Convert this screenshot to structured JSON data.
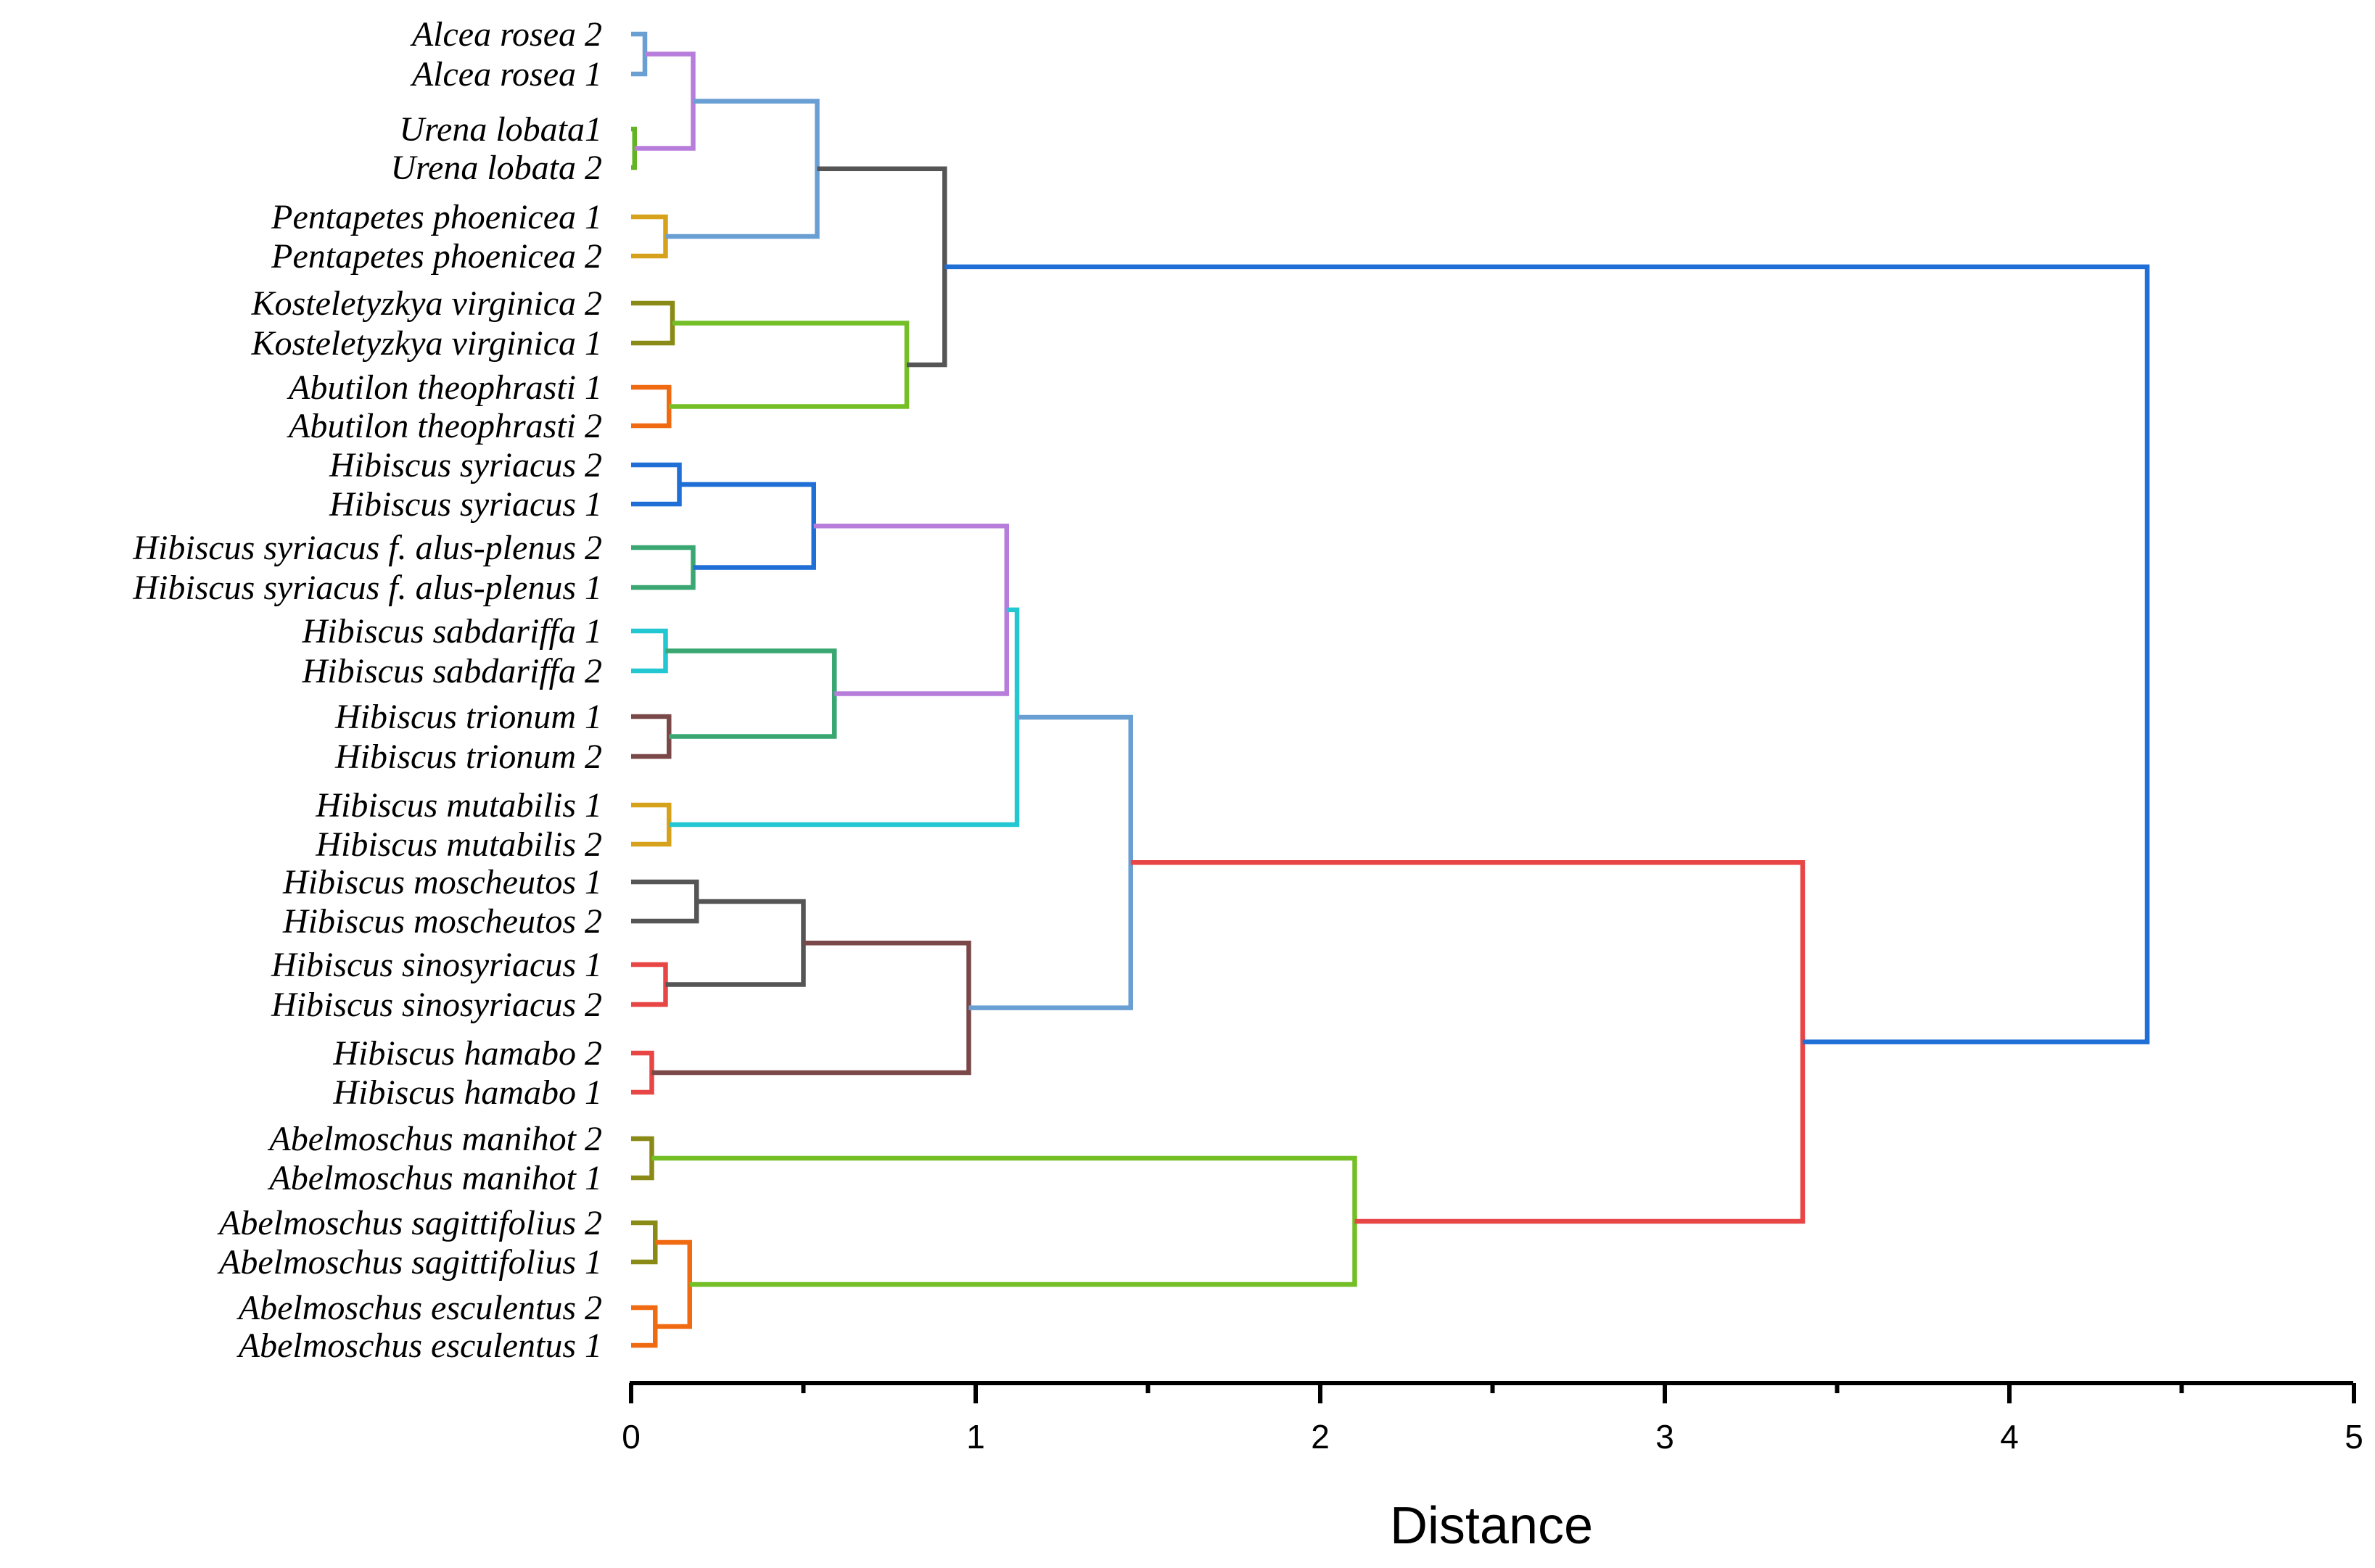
{
  "chart_data": {
    "type": "dendrogram",
    "xlabel": "Distance",
    "xlim": [
      0,
      5
    ],
    "major_ticks": [
      0,
      1,
      2,
      3,
      4,
      5
    ],
    "minor_ticks": [
      0.5,
      1.5,
      2.5,
      3.5,
      4.5
    ],
    "tick_labels": [
      "0",
      "1",
      "2",
      "3",
      "4",
      "5"
    ],
    "leaves": [
      "Alcea rosea 2",
      "Alcea rosea 1",
      "Urena lobata1",
      "Urena lobata 2",
      "Pentapetes phoenicea 1",
      "Pentapetes phoenicea 2",
      "Kosteletyzkya virginica 2",
      "Kosteletyzkya virginica 1",
      "Abutilon theophrasti 1",
      "Abutilon theophrasti 2",
      "Hibiscus syriacus 2",
      "Hibiscus syriacus 1",
      "Hibiscus syriacus f. alus-plenus 2",
      "Hibiscus syriacus f. alus-plenus 1",
      "Hibiscus sabdariffa 1",
      "Hibiscus sabdariffa 2",
      "Hibiscus trionum 1",
      "Hibiscus trionum 2",
      "Hibiscus mutabilis 1",
      "Hibiscus mutabilis 2",
      "Hibiscus moscheutos 1",
      "Hibiscus moscheutos 2",
      "Hibiscus sinosyriacus 1",
      "Hibiscus sinosyriacus 2",
      "Hibiscus hamabo 2",
      "Hibiscus hamabo 1",
      "Abelmoschus manihot 2",
      "Abelmoschus manihot 1",
      "Abelmoschus sagittifolius 2",
      "Abelmoschus sagittifolius 1",
      "Abelmoschus esculentus 2",
      "Abelmoschus esculentus 1"
    ],
    "merges": [
      {
        "id": "m1",
        "a": "L0",
        "b": "L1",
        "height": 0.04,
        "color": "#6a9fd4"
      },
      {
        "id": "m2",
        "a": "L2",
        "b": "L3",
        "height": 0.01,
        "color": "#62b422"
      },
      {
        "id": "m3",
        "a": "m1",
        "b": "m2",
        "height": 0.18,
        "color": "#b77ddb"
      },
      {
        "id": "m4",
        "a": "L4",
        "b": "L5",
        "height": 0.1,
        "color": "#d6a21c"
      },
      {
        "id": "m5",
        "a": "m3",
        "b": "m4",
        "height": 0.54,
        "color": "#6a9fd4"
      },
      {
        "id": "m6",
        "a": "L6",
        "b": "L7",
        "height": 0.12,
        "color": "#8a8a16"
      },
      {
        "id": "m7",
        "a": "L8",
        "b": "L9",
        "height": 0.11,
        "color": "#f06a12"
      },
      {
        "id": "m8",
        "a": "m6",
        "b": "m7",
        "height": 0.8,
        "color": "#74be26"
      },
      {
        "id": "m9",
        "a": "m5",
        "b": "m8",
        "height": 0.91,
        "color": "#555555"
      },
      {
        "id": "m10",
        "a": "L10",
        "b": "L11",
        "height": 0.14,
        "color": "#1f6fd6"
      },
      {
        "id": "m11",
        "a": "L12",
        "b": "L13",
        "height": 0.18,
        "color": "#3aa772"
      },
      {
        "id": "m12",
        "a": "m10",
        "b": "m11",
        "height": 0.53,
        "color": "#1f6fd6"
      },
      {
        "id": "m13",
        "a": "L14",
        "b": "L15",
        "height": 0.1,
        "color": "#22c7d2"
      },
      {
        "id": "m14",
        "a": "L16",
        "b": "L17",
        "height": 0.11,
        "color": "#7a4848"
      },
      {
        "id": "m15",
        "a": "m13",
        "b": "m14",
        "height": 0.59,
        "color": "#3aa772"
      },
      {
        "id": "m16",
        "a": "m12",
        "b": "m15",
        "height": 1.09,
        "color": "#b77ddb"
      },
      {
        "id": "m17",
        "a": "L18",
        "b": "L19",
        "height": 0.11,
        "color": "#d6a21c"
      },
      {
        "id": "m18",
        "a": "m16",
        "b": "m17",
        "height": 1.12,
        "color": "#22c7d2"
      },
      {
        "id": "m19",
        "a": "L20",
        "b": "L21",
        "height": 0.19,
        "color": "#555555"
      },
      {
        "id": "m20",
        "a": "L22",
        "b": "L23",
        "height": 0.1,
        "color": "#e84545"
      },
      {
        "id": "m21",
        "a": "m19",
        "b": "m20",
        "height": 0.5,
        "color": "#555555"
      },
      {
        "id": "m22",
        "a": "L24",
        "b": "L25",
        "height": 0.06,
        "color": "#e84545"
      },
      {
        "id": "m23",
        "a": "m21",
        "b": "m22",
        "height": 0.98,
        "color": "#7a4848"
      },
      {
        "id": "m24",
        "a": "m18",
        "b": "m23",
        "height": 1.45,
        "color": "#6a9fd4"
      },
      {
        "id": "m25",
        "a": "L26",
        "b": "L27",
        "height": 0.06,
        "color": "#8a8a16"
      },
      {
        "id": "m26",
        "a": "L28",
        "b": "L29",
        "height": 0.07,
        "color": "#8a8a16"
      },
      {
        "id": "m27",
        "a": "L30",
        "b": "L31",
        "height": 0.07,
        "color": "#f06a12"
      },
      {
        "id": "m28",
        "a": "m26",
        "b": "m27",
        "height": 0.17,
        "color": "#f06a12"
      },
      {
        "id": "m29",
        "a": "m25",
        "b": "m28",
        "height": 2.1,
        "color": "#74be26"
      },
      {
        "id": "m30",
        "a": "m24",
        "b": "m29",
        "height": 3.4,
        "color": "#e84545"
      },
      {
        "id": "m31",
        "a": "m9",
        "b": "m30",
        "height": 4.4,
        "color": "#1f6fd6"
      }
    ]
  }
}
